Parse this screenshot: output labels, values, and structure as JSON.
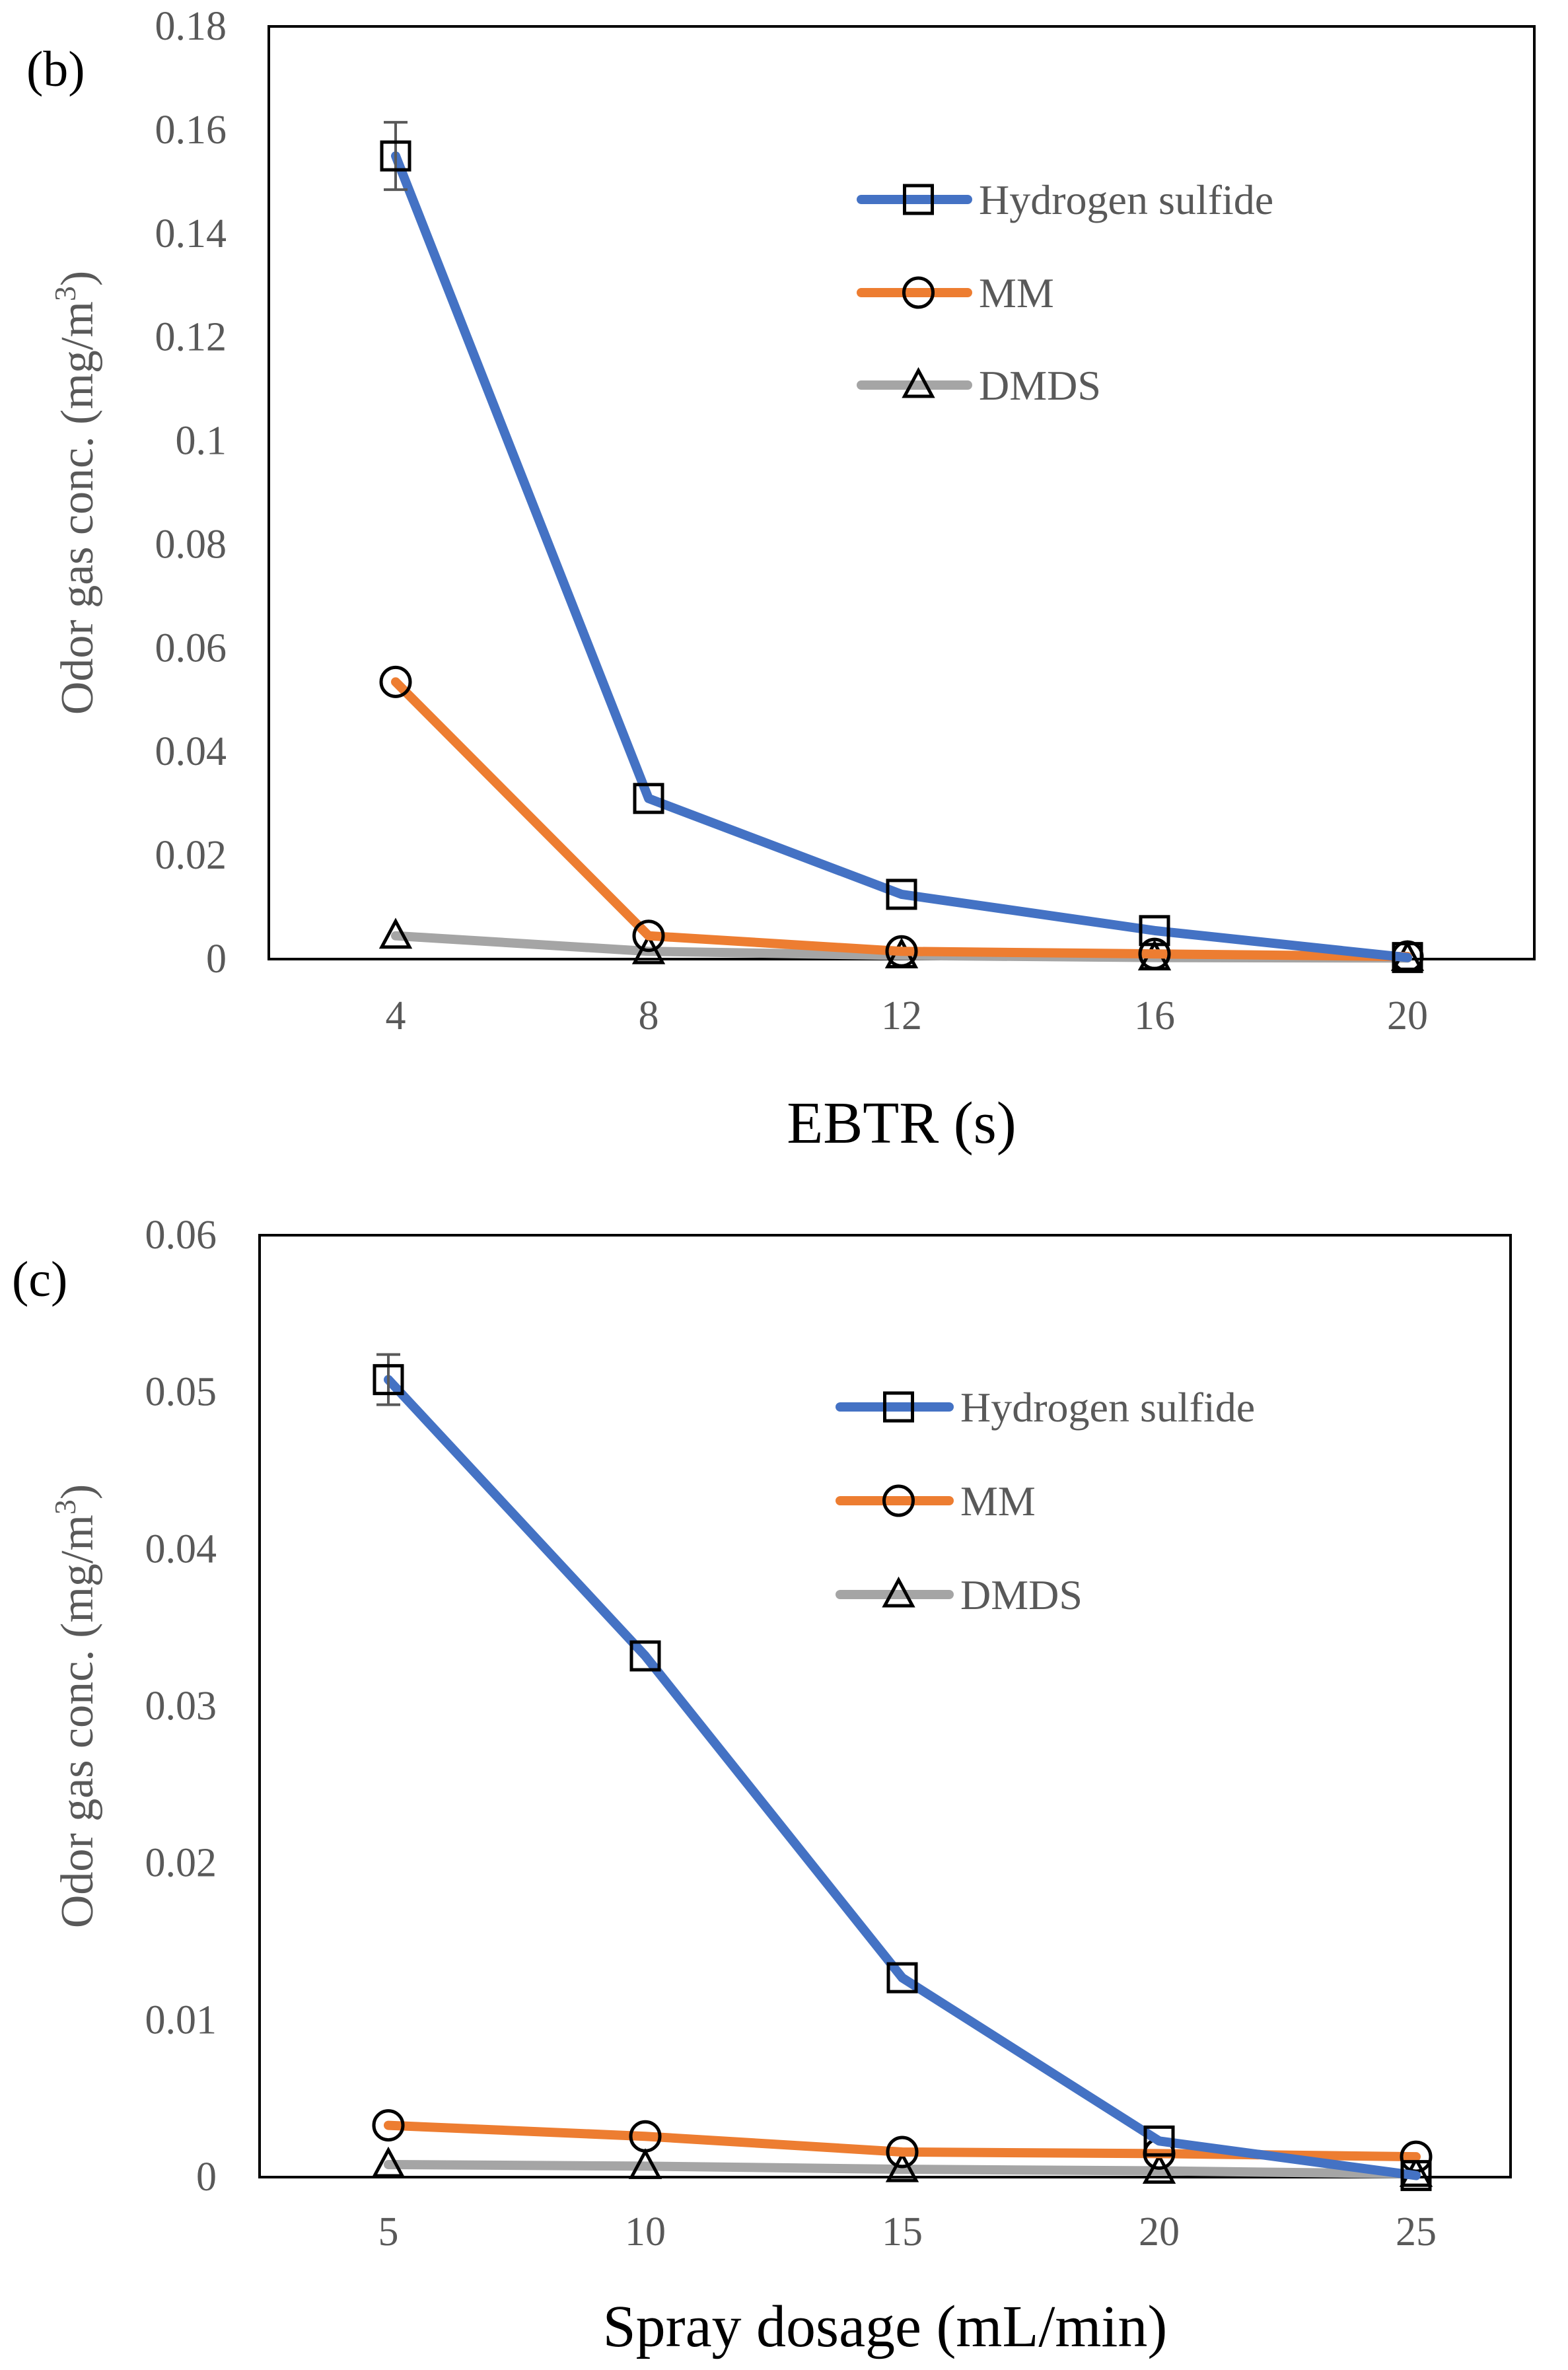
{
  "colors": {
    "hydrogen_sulfide": "#4472c4",
    "mm": "#ed7d31",
    "dmds": "#a5a5a5",
    "axis_text": "#595959",
    "frame": "#000000",
    "marker_stroke": "#000000"
  },
  "chart_data": [
    {
      "type": "line",
      "panel_label": "(b)",
      "title": "",
      "xlabel": "EBTR (s)",
      "ylabel": "Odor gas conc. (mg/m",
      "ylabel_sup": "3",
      "ylabel_close": ")",
      "x": [
        4,
        8,
        12,
        16,
        20
      ],
      "x_tick_labels": [
        "4",
        "8",
        "12",
        "16",
        "20"
      ],
      "ylim": [
        0,
        0.18
      ],
      "y_ticks": [
        0,
        0.02,
        0.04,
        0.06,
        0.08,
        0.1,
        0.12,
        0.14,
        0.16,
        0.18
      ],
      "y_tick_labels": [
        "0",
        "0.02",
        "0.04",
        "0.06",
        "0.08",
        "0.1",
        "0.12",
        "0.14",
        "0.16",
        "0.18"
      ],
      "grid": false,
      "legend_position": "top-right",
      "series": [
        {
          "name": "Hydrogen sulfide",
          "marker": "square",
          "color_key": "hydrogen_sulfide",
          "values": [
            0.155,
            0.031,
            0.0125,
            0.0055,
            0.0003
          ],
          "error": [
            0.0065,
            0,
            0,
            0,
            0
          ]
        },
        {
          "name": "MM",
          "marker": "circle",
          "color_key": "mm",
          "values": [
            0.0535,
            0.0045,
            0.0015,
            0.001,
            0.0005
          ],
          "error": [
            0,
            0,
            0,
            0,
            0
          ]
        },
        {
          "name": "DMDS",
          "marker": "triangle",
          "color_key": "dmds",
          "values": [
            0.0045,
            0.0015,
            0.0007,
            0.0003,
            0.0002
          ],
          "error": [
            0,
            0,
            0,
            0,
            0
          ]
        }
      ]
    },
    {
      "type": "line",
      "panel_label": "(c)",
      "title": "",
      "xlabel": "Spray dosage (mL/min)",
      "ylabel": "Odor gas conc. (mg/m",
      "ylabel_sup": "3",
      "ylabel_close": ")",
      "x": [
        5,
        10,
        15,
        20,
        25
      ],
      "x_tick_labels": [
        "5",
        "10",
        "15",
        "20",
        "25"
      ],
      "ylim": [
        0,
        0.06
      ],
      "y_ticks": [
        0,
        0.01,
        0.02,
        0.03,
        0.04,
        0.05,
        0.06
      ],
      "y_tick_labels": [
        "0",
        "0.01",
        "0.02",
        "0.03",
        "0.04",
        "0.05",
        "0.06"
      ],
      "grid": false,
      "legend_position": "top-right",
      "series": [
        {
          "name": "Hydrogen sulfide",
          "marker": "square",
          "color_key": "hydrogen_sulfide",
          "values": [
            0.0508,
            0.0332,
            0.0127,
            0.0023,
            0.0001
          ],
          "error": [
            0.0016,
            0,
            0,
            0,
            0
          ]
        },
        {
          "name": "MM",
          "marker": "circle",
          "color_key": "mm",
          "values": [
            0.0033,
            0.0026,
            0.0016,
            0.0015,
            0.0013
          ],
          "error": [
            0,
            0,
            0,
            0,
            0
          ]
        },
        {
          "name": "DMDS",
          "marker": "triangle",
          "color_key": "dmds",
          "values": [
            0.0008,
            0.0007,
            0.0005,
            0.0004,
            0.0002
          ],
          "error": [
            0,
            0,
            0,
            0,
            0
          ]
        }
      ]
    }
  ]
}
